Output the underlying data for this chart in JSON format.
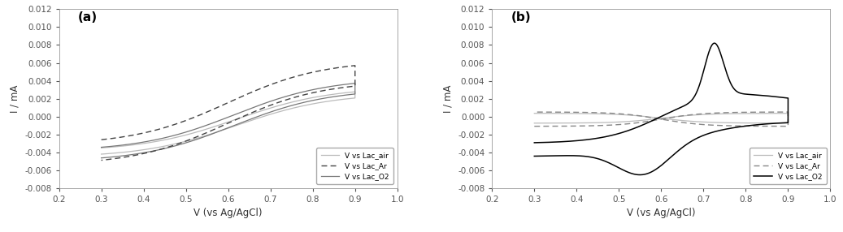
{
  "xlim": [
    0.2,
    1.0
  ],
  "ylim": [
    -0.008,
    0.012
  ],
  "xlabel": "V (vs Ag/AgCl)",
  "ylabel": "I / mA",
  "xticks": [
    0.2,
    0.3,
    0.4,
    0.5,
    0.6,
    0.7,
    0.8,
    0.9,
    1.0
  ],
  "yticks": [
    -0.008,
    -0.006,
    -0.004,
    -0.002,
    0.0,
    0.002,
    0.004,
    0.006,
    0.008,
    0.01,
    0.012
  ],
  "label_a": "(a)",
  "label_b": "(b)",
  "legend_labels": [
    "V vs Lac_air",
    "V vs Lac_Ar",
    "V vs Lac_O2"
  ],
  "color_air_a": "#bbbbbb",
  "color_ar_a": "#444444",
  "color_o2_a": "#777777",
  "color_air_b": "#bbbbbb",
  "color_ar_b": "#888888",
  "color_o2_b": "#000000"
}
